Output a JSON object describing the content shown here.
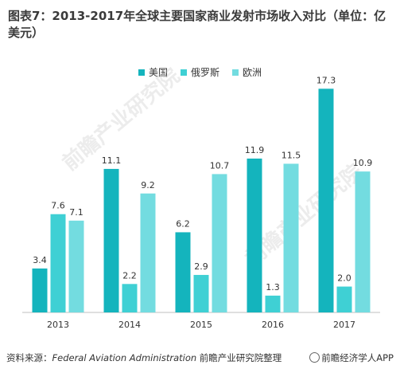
{
  "title": "图表7：2013-2017年全球主要国家商业发射市场收入对比（单位：亿美元）",
  "source_prefix": "资料来源：",
  "source_en": "Federal Aviation Administration",
  "source_cn": " 前瞻产业研究院整理",
  "logo_text": "前瞻经济学人APP",
  "watermark": "前瞻产业研究院",
  "colors": {
    "usa": "#14b4bd",
    "russia": "#3fd0d4",
    "europe": "#73dce0",
    "axis": "#bfbfbf"
  },
  "chart_data": {
    "type": "bar",
    "title": "图表7：2013-2017年全球主要国家商业发射市场收入对比（单位：亿美元）",
    "categories": [
      "2013",
      "2014",
      "2015",
      "2016",
      "2017"
    ],
    "series": [
      {
        "name": "美国",
        "values": [
          3.4,
          11.1,
          6.2,
          11.9,
          17.3
        ]
      },
      {
        "name": "俄罗斯",
        "values": [
          7.6,
          2.2,
          2.9,
          1.3,
          2.0
        ]
      },
      {
        "name": "欧洲",
        "values": [
          7.1,
          9.2,
          10.7,
          11.5,
          10.9
        ]
      }
    ],
    "ylim": [
      0,
      18
    ],
    "grid": false,
    "legend_position": "top-center"
  }
}
